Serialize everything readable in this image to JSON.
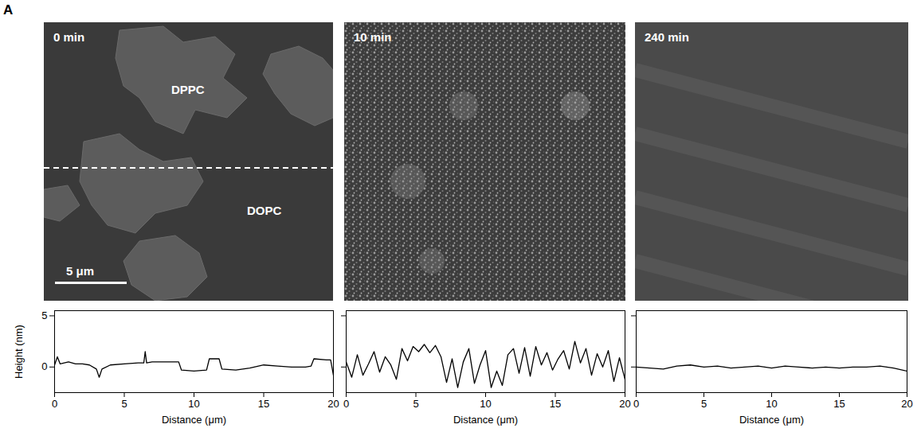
{
  "panel": "A",
  "images": [
    {
      "time": "0 min",
      "labels": [
        "DPPC",
        "DOPC"
      ],
      "scale_bar": "5 μm"
    },
    {
      "time": "10 min"
    },
    {
      "time": "240 min"
    }
  ],
  "chart_data": [
    {
      "type": "line",
      "xlabel": "Distance (μm)",
      "ylabel": "Height (nm)",
      "color": "#000000",
      "x": [
        0,
        0.2,
        0.4,
        1,
        1.5,
        2,
        2.5,
        3,
        3.2,
        3.4,
        4,
        5,
        6,
        6.4,
        6.5,
        6.6,
        7,
        8,
        8.9,
        9.1,
        10,
        10.9,
        11.1,
        11.8,
        12,
        13,
        14,
        15,
        16,
        17,
        18,
        18.4,
        18.6,
        19.5,
        19.8,
        20
      ],
      "values": [
        0.2,
        1.0,
        0.3,
        0.5,
        0.3,
        0.3,
        0.2,
        -0.2,
        -1.0,
        -0.2,
        0.2,
        0.3,
        0.4,
        0.4,
        1.5,
        0.4,
        0.5,
        0.5,
        0.5,
        -0.3,
        -0.4,
        -0.3,
        0.8,
        0.8,
        -0.2,
        -0.3,
        -0.1,
        0.2,
        0.1,
        0.0,
        0.0,
        0.1,
        0.8,
        0.7,
        0.7,
        -0.8
      ],
      "xlim": [
        0,
        20
      ],
      "xticks": [
        0,
        5,
        10,
        15,
        20
      ],
      "ylim": [
        -2.5,
        5.5
      ],
      "yticks": [
        0,
        5
      ]
    },
    {
      "type": "line",
      "xlabel": "Distance (μm)",
      "color": "#000000",
      "tick_labels": "x",
      "x": [
        0,
        0.4,
        0.8,
        1.2,
        1.6,
        2,
        2.4,
        2.8,
        3.2,
        3.6,
        4,
        4.4,
        4.8,
        5.2,
        5.6,
        6,
        6.4,
        6.8,
        7.2,
        7.6,
        8,
        8.4,
        8.8,
        9.2,
        9.6,
        10,
        10.4,
        10.8,
        11.2,
        11.6,
        12,
        12.4,
        12.8,
        13.2,
        13.6,
        14,
        14.4,
        14.8,
        15.2,
        15.6,
        16,
        16.4,
        16.8,
        17.2,
        17.6,
        18,
        18.4,
        18.8,
        19.2,
        19.6,
        20
      ],
      "values": [
        0.5,
        -1.0,
        1.2,
        -0.8,
        0.3,
        1.5,
        -0.5,
        1.0,
        0.2,
        -1.2,
        1.8,
        0.6,
        2.0,
        1.5,
        2.2,
        1.4,
        2.1,
        1.0,
        -1.5,
        0.8,
        -2.0,
        0.5,
        1.8,
        -1.6,
        0.2,
        1.6,
        -2.0,
        -0.4,
        -1.8,
        1.2,
        1.8,
        -0.6,
        1.9,
        -0.9,
        2.0,
        0.2,
        1.4,
        -0.3,
        0.8,
        1.6,
        -0.2,
        2.5,
        0.4,
        1.8,
        -0.8,
        1.3,
        0.0,
        1.6,
        -1.4,
        0.9,
        -1.2
      ],
      "xlim": [
        0,
        20
      ],
      "xticks": [
        0,
        5,
        10,
        15,
        20
      ],
      "ylim": [
        -2.5,
        5.5
      ],
      "yticks": [
        0,
        5
      ]
    },
    {
      "type": "line",
      "xlabel": "Distance (μm)",
      "color": "#000000",
      "tick_labels": "x",
      "x": [
        0,
        1,
        2,
        3,
        4,
        5,
        6,
        7,
        8,
        9,
        10,
        11,
        12,
        13,
        14,
        15,
        16,
        17,
        18,
        19,
        20
      ],
      "values": [
        0.0,
        -0.1,
        -0.2,
        0.1,
        0.2,
        0.0,
        0.1,
        -0.1,
        0.0,
        0.1,
        -0.1,
        0.1,
        0.0,
        -0.1,
        0.0,
        -0.1,
        0.0,
        0.0,
        0.1,
        -0.1,
        -0.4
      ],
      "xlim": [
        0,
        20
      ],
      "xticks": [
        0,
        5,
        10,
        15,
        20
      ],
      "ylim": [
        -2.5,
        5.5
      ],
      "yticks": [
        0,
        5
      ]
    }
  ]
}
